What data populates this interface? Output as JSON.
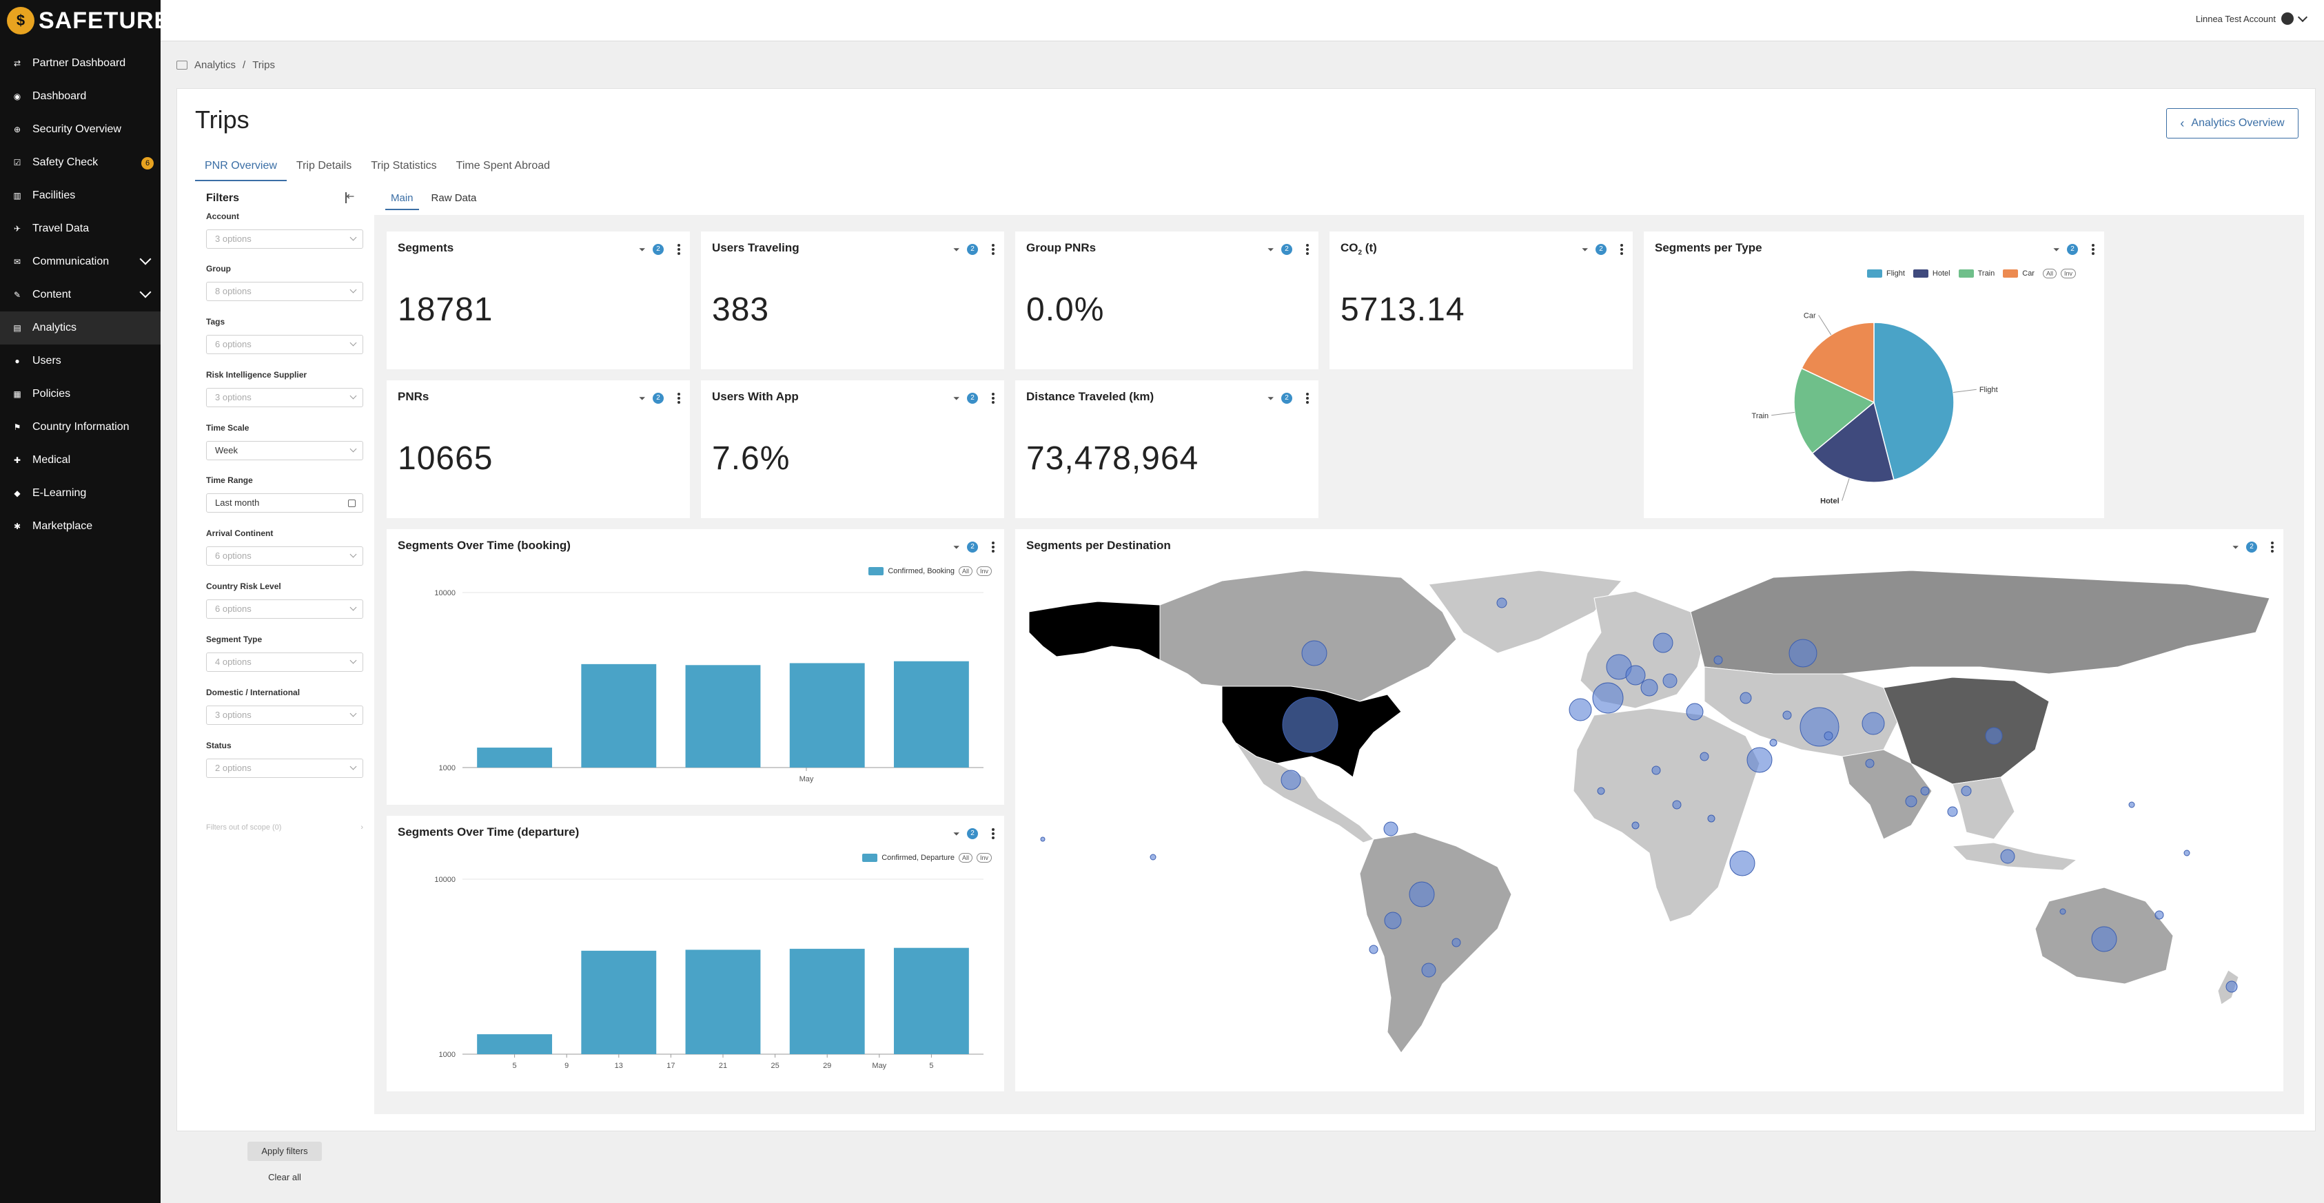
{
  "brand": {
    "name": "SAFETURE"
  },
  "sidebar": {
    "items": [
      {
        "label": "Partner Dashboard",
        "icon": "handshake-icon",
        "glyph": "⇄"
      },
      {
        "label": "Dashboard",
        "icon": "dashboard-icon",
        "glyph": "◉"
      },
      {
        "label": "Security Overview",
        "icon": "globe-icon",
        "glyph": "⊕"
      },
      {
        "label": "Safety Check",
        "icon": "checkbox-icon",
        "glyph": "☑",
        "badge": "6"
      },
      {
        "label": "Facilities",
        "icon": "building-icon",
        "glyph": "▥"
      },
      {
        "label": "Travel Data",
        "icon": "plane-icon",
        "glyph": "✈"
      },
      {
        "label": "Communication",
        "icon": "chat-icon",
        "glyph": "✉",
        "expand": true
      },
      {
        "label": "Content",
        "icon": "pencil-icon",
        "glyph": "✎",
        "expand": true
      },
      {
        "label": "Analytics",
        "icon": "chart-icon",
        "glyph": "▤",
        "active": true
      },
      {
        "label": "Users",
        "icon": "user-icon",
        "glyph": "●"
      },
      {
        "label": "Policies",
        "icon": "document-icon",
        "glyph": "▦"
      },
      {
        "label": "Country Information",
        "icon": "flag-icon",
        "glyph": "⚑"
      },
      {
        "label": "Medical",
        "icon": "medical-icon",
        "glyph": "✚"
      },
      {
        "label": "E-Learning",
        "icon": "graduation-icon",
        "glyph": "◆"
      },
      {
        "label": "Marketplace",
        "icon": "puzzle-icon",
        "glyph": "✱"
      }
    ]
  },
  "topbar": {
    "account": "Linnea Test Account"
  },
  "breadcrumb": {
    "parent": "Analytics",
    "sep": "/",
    "current": "Trips"
  },
  "page": {
    "title": "Trips",
    "overview_button": "Analytics Overview"
  },
  "tabs": [
    "PNR Overview",
    "Trip Details",
    "Trip Statistics",
    "Time Spent Abroad"
  ],
  "subtabs": [
    "Main",
    "Raw Data"
  ],
  "filters": {
    "title": "Filters",
    "fields": [
      {
        "label": "Account",
        "value": "3 options"
      },
      {
        "label": "Group",
        "value": "8 options"
      },
      {
        "label": "Tags",
        "value": "6 options"
      },
      {
        "label": "Risk Intelligence Supplier",
        "value": "3 options"
      },
      {
        "label": "Time Scale",
        "value": "Week"
      },
      {
        "label": "Time Range",
        "value": "Last month"
      },
      {
        "label": "Arrival Continent",
        "value": "6 options"
      },
      {
        "label": "Country Risk Level",
        "value": "6 options"
      },
      {
        "label": "Segment Type",
        "value": "4 options"
      },
      {
        "label": "Domestic / International",
        "value": "3 options"
      },
      {
        "label": "Status",
        "value": "2 options"
      }
    ],
    "out_of_scope": "Filters out of scope (0)",
    "apply": "Apply filters",
    "clear": "Clear all"
  },
  "kpis": {
    "segments": {
      "title": "Segments",
      "value": "18781",
      "badge": "2"
    },
    "users_traveling": {
      "title": "Users Traveling",
      "value": "383",
      "badge": "2"
    },
    "group_pnrs": {
      "title": "Group PNRs",
      "value": "0.0%",
      "badge": "2"
    },
    "co2": {
      "title": "CO",
      "sub": "2",
      "unit": " (t)",
      "value": "5713.14",
      "badge": "2"
    },
    "pnrs": {
      "title": "PNRs",
      "value": "10665",
      "badge": "2"
    },
    "users_with_app": {
      "title": "Users With App",
      "value": "7.6%",
      "badge": "2"
    },
    "distance": {
      "title": "Distance Traveled (km)",
      "value": "73,478,964",
      "badge": "2"
    }
  },
  "tiles": {
    "segments_per_type": {
      "title": "Segments per Type",
      "badge": "2"
    },
    "booking": {
      "title": "Segments Over Time (booking)",
      "badge": "2"
    },
    "departure": {
      "title": "Segments Over Time (departure)",
      "badge": "2"
    },
    "destination": {
      "title": "Segments per Destination",
      "badge": "2"
    },
    "all_pill": "All",
    "inv_pill": "Inv"
  },
  "chart_data": [
    {
      "type": "pie",
      "title": "Segments per Type",
      "categories": [
        "Flight",
        "Hotel",
        "Train",
        "Car"
      ],
      "values": [
        46,
        18,
        18,
        18
      ],
      "colors": [
        "#4aa3c7",
        "#3f4a7d",
        "#6fbf8a",
        "#ec8a50"
      ],
      "legend": "top-right"
    },
    {
      "type": "bar",
      "title": "Segments Over Time (booking)",
      "series": [
        {
          "name": "Confirmed, Booking",
          "values": [
            1300,
            3900,
            3850,
            3950,
            4050
          ]
        }
      ],
      "y_ticks": [
        "10000",
        "1000"
      ],
      "ylim": [
        1000,
        10000
      ],
      "yscale": "log",
      "x_ticks": [
        {
          "label": "May",
          "pos": 3.5
        }
      ],
      "color": "#4aa3c7",
      "legend": "top-right"
    },
    {
      "type": "bar",
      "title": "Segments Over Time (departure)",
      "series": [
        {
          "name": "Confirmed, Departure",
          "values": [
            1300,
            3900,
            3950,
            4000,
            4050
          ]
        }
      ],
      "y_ticks": [
        "10000",
        "1000"
      ],
      "ylim": [
        1000,
        10000
      ],
      "yscale": "log",
      "x_ticks": [
        {
          "label": "5",
          "pos": 0
        },
        {
          "label": "9",
          "pos": 0.75
        },
        {
          "label": "13",
          "pos": 1.5
        },
        {
          "label": "17",
          "pos": 2.25
        },
        {
          "label": "21",
          "pos": 3
        },
        {
          "label": "25",
          "pos": 3.75
        },
        {
          "label": "29",
          "pos": 4.5
        },
        {
          "label": "May",
          "pos": 5.25
        },
        {
          "label": "5",
          "pos": 6
        }
      ],
      "color": "#4aa3c7",
      "legend": "top-right"
    }
  ]
}
